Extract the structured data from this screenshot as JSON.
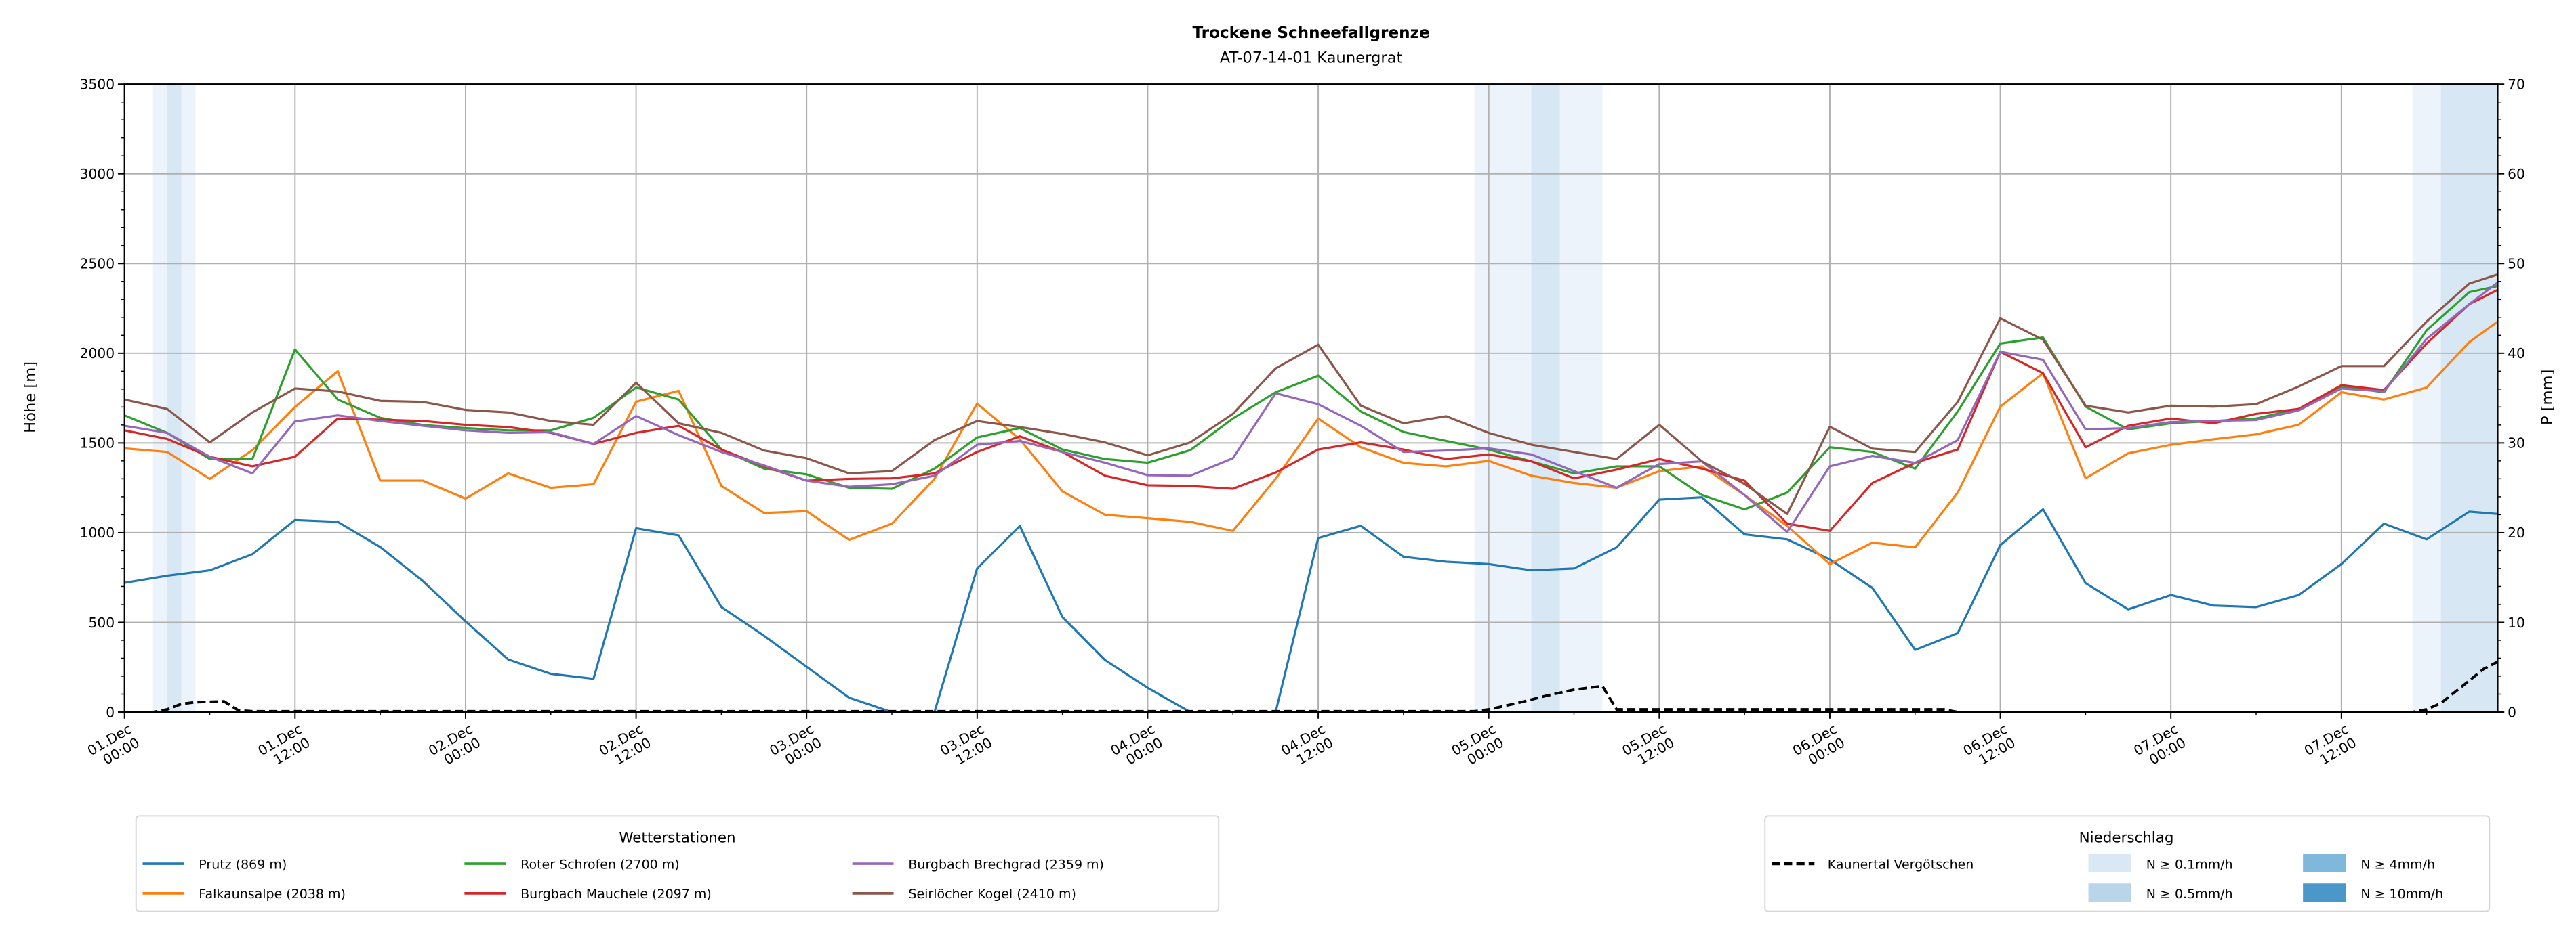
{
  "chart_data": {
    "type": "line",
    "title": "Trockene Schneefallgrenze",
    "subtitle": "AT-07-14-01 Kaunergrat",
    "ylabel": "Höhe [m]",
    "ylabel_right": "P [mm]",
    "ylim": [
      0,
      3500
    ],
    "ylim_right": [
      0,
      70
    ],
    "yticks": [
      "0",
      "500",
      "1000",
      "1500",
      "2000",
      "2500",
      "3000",
      "3500"
    ],
    "yticks_right": [
      "0",
      "10",
      "20",
      "30",
      "40",
      "50",
      "60",
      "70"
    ],
    "grid": true,
    "x_unit": "hours since 01.Dec 00:00",
    "xlim": [
      0,
      167
    ],
    "x_tick_labels": [
      {
        "date": "01.Dec",
        "time": "00:00"
      },
      {
        "date": "01.Dec",
        "time": "12:00"
      },
      {
        "date": "02.Dec",
        "time": "00:00"
      },
      {
        "date": "02.Dec",
        "time": "12:00"
      },
      {
        "date": "03.Dec",
        "time": "00:00"
      },
      {
        "date": "03.Dec",
        "time": "12:00"
      },
      {
        "date": "04.Dec",
        "time": "00:00"
      },
      {
        "date": "04.Dec",
        "time": "12:00"
      },
      {
        "date": "05.Dec",
        "time": "00:00"
      },
      {
        "date": "05.Dec",
        "time": "12:00"
      },
      {
        "date": "06.Dec",
        "time": "00:00"
      },
      {
        "date": "06.Dec",
        "time": "12:00"
      },
      {
        "date": "07.Dec",
        "time": "00:00"
      },
      {
        "date": "07.Dec",
        "time": "12:00"
      }
    ],
    "x": [
      0,
      3,
      6,
      9,
      12,
      15,
      18,
      21,
      24,
      27,
      30,
      33,
      36,
      39,
      42,
      45,
      48,
      51,
      54,
      57,
      60,
      63,
      66,
      69,
      72,
      75,
      78,
      81,
      84,
      87,
      90,
      93,
      96,
      99,
      102,
      105,
      108,
      111,
      114,
      117,
      120,
      123,
      126,
      129,
      132,
      135,
      138,
      141,
      144,
      147,
      150,
      153,
      156,
      159,
      162,
      165,
      167
    ],
    "series": [
      {
        "name": "Prutz (869 m)",
        "color": "#1f77b4",
        "values": [
          720,
          760,
          790,
          880,
          1070,
          1060,
          920,
          730,
          505,
          293,
          213,
          186,
          1024,
          985,
          585,
          425,
          253,
          80,
          0,
          0,
          800,
          1037,
          530,
          290,
          135,
          0,
          0,
          0,
          970,
          1038,
          865,
          838,
          825,
          790,
          800,
          918,
          1184,
          1197,
          990,
          963,
          851,
          692,
          346,
          440,
          931,
          1130,
          718,
          572,
          652,
          593,
          585,
          652,
          825,
          1050,
          963,
          1117,
          1104
        ]
      },
      {
        "name": "Falkaunsalpe (2038 m)",
        "color": "#ff7f0e",
        "values": [
          1470,
          1450,
          1300,
          1460,
          1700,
          1900,
          1290,
          1290,
          1190,
          1330,
          1250,
          1270,
          1730,
          1790,
          1260,
          1110,
          1120,
          960,
          1050,
          1300,
          1720,
          1520,
          1230,
          1100,
          1080,
          1060,
          1010,
          1300,
          1636,
          1476,
          1389,
          1370,
          1400,
          1317,
          1277,
          1250,
          1343,
          1370,
          1210,
          1037,
          825,
          944,
          918,
          1224,
          1702,
          1889,
          1303,
          1442,
          1490,
          1520,
          1548,
          1601,
          1782,
          1742,
          1809,
          2062,
          2176
        ]
      },
      {
        "name": "Roter Schrofen (2700 m)",
        "color": "#2ca02c",
        "values": [
          1654,
          1556,
          1410,
          1410,
          2021,
          1742,
          1640,
          1600,
          1583,
          1570,
          1570,
          1640,
          1809,
          1742,
          1463,
          1357,
          1325,
          1250,
          1245,
          1357,
          1530,
          1583,
          1463,
          1410,
          1390,
          1460,
          1636,
          1782,
          1875,
          1676,
          1561,
          1511,
          1463,
          1397,
          1330,
          1370,
          1370,
          1210,
          1130,
          1224,
          1476,
          1450,
          1357,
          1676,
          2054,
          2088,
          1702,
          1575,
          1609,
          1622,
          1636,
          1689,
          1814,
          1782,
          2128,
          2341,
          2375
        ]
      },
      {
        "name": "Burgbach Mauchele (2097 m)",
        "color": "#d62728",
        "values": [
          1570,
          1522,
          1423,
          1370,
          1423,
          1636,
          1630,
          1622,
          1601,
          1588,
          1556,
          1495,
          1556,
          1596,
          1463,
          1370,
          1290,
          1300,
          1303,
          1330,
          1450,
          1537,
          1450,
          1317,
          1264,
          1260,
          1245,
          1335,
          1463,
          1503,
          1463,
          1410,
          1436,
          1397,
          1303,
          1351,
          1410,
          1357,
          1290,
          1050,
          1010,
          1277,
          1389,
          1463,
          2008,
          1889,
          1476,
          1596,
          1636,
          1609,
          1662,
          1689,
          1822,
          1795,
          2054,
          2274,
          2354
        ]
      },
      {
        "name": "Burgbach Brechgrad (2359 m)",
        "color": "#9467bd",
        "values": [
          1596,
          1556,
          1423,
          1330,
          1620,
          1654,
          1622,
          1596,
          1570,
          1556,
          1560,
          1495,
          1650,
          1543,
          1450,
          1375,
          1290,
          1256,
          1270,
          1317,
          1490,
          1511,
          1450,
          1390,
          1320,
          1317,
          1415,
          1777,
          1716,
          1596,
          1450,
          1458,
          1470,
          1436,
          1343,
          1250,
          1383,
          1397,
          1210,
          1003,
          1370,
          1428,
          1389,
          1516,
          2008,
          1963,
          1575,
          1583,
          1617,
          1622,
          1628,
          1681,
          1803,
          1787,
          2080,
          2274,
          2394
        ]
      },
      {
        "name": "Seirlöcher Kogel (2410 m)",
        "color": "#8c564b",
        "values": [
          1742,
          1689,
          1503,
          1670,
          1803,
          1787,
          1734,
          1729,
          1684,
          1670,
          1622,
          1601,
          1835,
          1609,
          1556,
          1458,
          1415,
          1330,
          1343,
          1516,
          1622,
          1588,
          1551,
          1503,
          1431,
          1503,
          1662,
          1915,
          2048,
          1708,
          1609,
          1649,
          1556,
          1490,
          1450,
          1410,
          1601,
          1397,
          1271,
          1104,
          1590,
          1468,
          1450,
          1729,
          2195,
          2075,
          1708,
          1670,
          1708,
          1702,
          1716,
          1814,
          1928,
          1928,
          2176,
          2388,
          2439
        ]
      }
    ],
    "precip_series": {
      "name": "Kaunertal Vergötschen",
      "color": "#000000",
      "x": [
        0,
        2,
        3,
        4,
        5,
        7,
        8,
        9,
        95,
        96,
        98,
        100,
        102,
        104,
        105,
        128,
        129,
        161,
        162,
        163,
        165,
        166,
        167
      ],
      "values": [
        0,
        0,
        0.3,
        0.9,
        1.1,
        1.2,
        0.2,
        0.1,
        0.1,
        0.3,
        1.0,
        1.8,
        2.5,
        2.9,
        0.3,
        0.3,
        0,
        0,
        0.3,
        1.0,
        3.5,
        4.8,
        5.6
      ]
    },
    "precip_bands": [
      {
        "start": 2,
        "end": 5,
        "level": 0
      },
      {
        "start": 3,
        "end": 4,
        "level": 1
      },
      {
        "start": 95,
        "end": 104,
        "level": 0
      },
      {
        "start": 99,
        "end": 101,
        "level": 1
      },
      {
        "start": 161,
        "end": 163,
        "level": 0
      },
      {
        "start": 163,
        "end": 167,
        "level": 1
      }
    ],
    "legend_stations": {
      "title": "Wetterstationen",
      "placement": "bottom-left"
    },
    "legend_precip": {
      "title": "Niederschlag",
      "placement": "bottom-right",
      "line_label": "Kaunertal Vergötschen",
      "levels": [
        {
          "label": "N ≥ 0.1mm/h",
          "color": "#d9e8f5"
        },
        {
          "label": "N ≥ 0.5mm/h",
          "color": "#b8d5ea"
        },
        {
          "label": "N ≥ 4mm/h",
          "color": "#7fb8da"
        },
        {
          "label": "N ≥ 10mm/h",
          "color": "#4a98c9"
        }
      ]
    }
  }
}
